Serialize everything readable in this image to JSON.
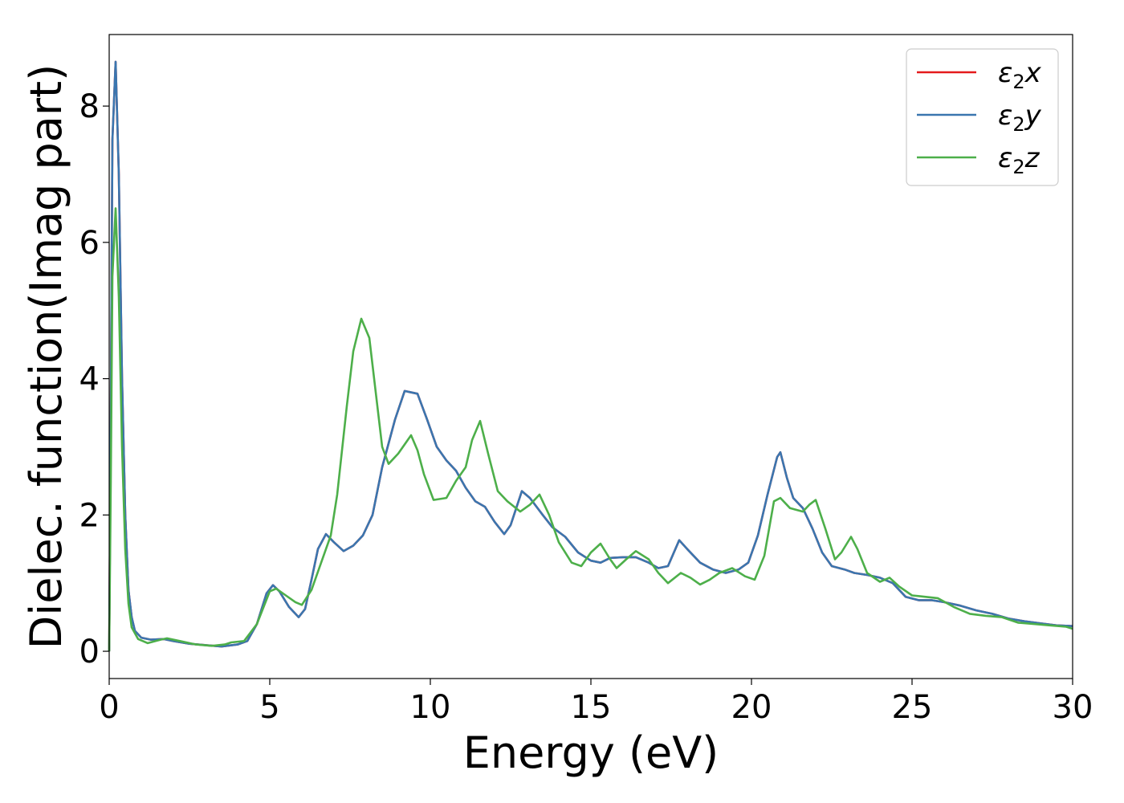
{
  "chart_data": {
    "type": "line",
    "xlabel": "Energy (eV)",
    "ylabel": "Dielec. function(Imag part)",
    "xlim": [
      0,
      30
    ],
    "ylim": [
      -0.4,
      9.05
    ],
    "x_ticks": [
      0,
      5,
      10,
      15,
      20,
      25,
      30
    ],
    "y_ticks": [
      0,
      2,
      4,
      6,
      8
    ],
    "legend_position": "top-right",
    "grid": false,
    "series": [
      {
        "name": "ε₂x",
        "legend_base": "ε",
        "legend_sub": "2",
        "legend_tail": "x",
        "color": "#e41a1c",
        "points": [
          [
            0,
            0
          ],
          [
            0.05,
            3.5
          ],
          [
            0.1,
            7.5
          ],
          [
            0.2,
            8.65
          ],
          [
            0.3,
            7.0
          ],
          [
            0.4,
            4.0
          ],
          [
            0.5,
            2.0
          ],
          [
            0.6,
            0.9
          ],
          [
            0.7,
            0.5
          ],
          [
            0.8,
            0.3
          ],
          [
            1.0,
            0.2
          ],
          [
            1.3,
            0.17
          ],
          [
            1.7,
            0.18
          ],
          [
            2.0,
            0.15
          ],
          [
            2.5,
            0.11
          ],
          [
            3.0,
            0.09
          ],
          [
            3.5,
            0.07
          ],
          [
            4.0,
            0.1
          ],
          [
            4.3,
            0.15
          ],
          [
            4.6,
            0.4
          ],
          [
            4.9,
            0.85
          ],
          [
            5.1,
            0.97
          ],
          [
            5.3,
            0.88
          ],
          [
            5.6,
            0.65
          ],
          [
            5.9,
            0.5
          ],
          [
            6.1,
            0.62
          ],
          [
            6.3,
            1.05
          ],
          [
            6.5,
            1.5
          ],
          [
            6.75,
            1.72
          ],
          [
            7.0,
            1.6
          ],
          [
            7.3,
            1.47
          ],
          [
            7.6,
            1.55
          ],
          [
            7.9,
            1.7
          ],
          [
            8.2,
            2.0
          ],
          [
            8.5,
            2.7
          ],
          [
            8.9,
            3.4
          ],
          [
            9.2,
            3.82
          ],
          [
            9.6,
            3.78
          ],
          [
            9.9,
            3.4
          ],
          [
            10.2,
            3.0
          ],
          [
            10.5,
            2.8
          ],
          [
            10.8,
            2.65
          ],
          [
            11.1,
            2.4
          ],
          [
            11.4,
            2.2
          ],
          [
            11.7,
            2.12
          ],
          [
            12.0,
            1.9
          ],
          [
            12.3,
            1.72
          ],
          [
            12.5,
            1.85
          ],
          [
            12.85,
            2.35
          ],
          [
            13.1,
            2.25
          ],
          [
            13.5,
            2.0
          ],
          [
            13.8,
            1.82
          ],
          [
            14.2,
            1.68
          ],
          [
            14.6,
            1.45
          ],
          [
            15.0,
            1.33
          ],
          [
            15.3,
            1.3
          ],
          [
            15.6,
            1.37
          ],
          [
            16.0,
            1.38
          ],
          [
            16.4,
            1.38
          ],
          [
            16.8,
            1.3
          ],
          [
            17.1,
            1.22
          ],
          [
            17.4,
            1.25
          ],
          [
            17.75,
            1.63
          ],
          [
            18.0,
            1.5
          ],
          [
            18.4,
            1.3
          ],
          [
            18.8,
            1.2
          ],
          [
            19.2,
            1.15
          ],
          [
            19.6,
            1.2
          ],
          [
            19.9,
            1.3
          ],
          [
            20.2,
            1.7
          ],
          [
            20.5,
            2.3
          ],
          [
            20.8,
            2.85
          ],
          [
            20.9,
            2.92
          ],
          [
            21.1,
            2.55
          ],
          [
            21.3,
            2.25
          ],
          [
            21.6,
            2.1
          ],
          [
            21.9,
            1.8
          ],
          [
            22.2,
            1.45
          ],
          [
            22.5,
            1.25
          ],
          [
            22.9,
            1.2
          ],
          [
            23.2,
            1.15
          ],
          [
            23.6,
            1.12
          ],
          [
            24.0,
            1.08
          ],
          [
            24.4,
            1.0
          ],
          [
            24.8,
            0.8
          ],
          [
            25.2,
            0.75
          ],
          [
            25.6,
            0.75
          ],
          [
            26.0,
            0.72
          ],
          [
            26.5,
            0.67
          ],
          [
            27.0,
            0.6
          ],
          [
            27.5,
            0.55
          ],
          [
            28.0,
            0.48
          ],
          [
            28.5,
            0.44
          ],
          [
            29.0,
            0.41
          ],
          [
            29.5,
            0.38
          ],
          [
            30.0,
            0.37
          ]
        ]
      },
      {
        "name": "ε₂y",
        "legend_base": "ε",
        "legend_sub": "2",
        "legend_tail": "y",
        "color": "#3a76af",
        "points": [
          [
            0,
            0
          ],
          [
            0.05,
            3.5
          ],
          [
            0.1,
            7.5
          ],
          [
            0.2,
            8.65
          ],
          [
            0.3,
            7.0
          ],
          [
            0.4,
            4.0
          ],
          [
            0.5,
            2.0
          ],
          [
            0.6,
            0.9
          ],
          [
            0.7,
            0.5
          ],
          [
            0.8,
            0.3
          ],
          [
            1.0,
            0.2
          ],
          [
            1.3,
            0.17
          ],
          [
            1.7,
            0.18
          ],
          [
            2.0,
            0.15
          ],
          [
            2.5,
            0.11
          ],
          [
            3.0,
            0.09
          ],
          [
            3.5,
            0.07
          ],
          [
            4.0,
            0.1
          ],
          [
            4.3,
            0.15
          ],
          [
            4.6,
            0.4
          ],
          [
            4.9,
            0.85
          ],
          [
            5.1,
            0.97
          ],
          [
            5.3,
            0.88
          ],
          [
            5.6,
            0.65
          ],
          [
            5.9,
            0.5
          ],
          [
            6.1,
            0.62
          ],
          [
            6.3,
            1.05
          ],
          [
            6.5,
            1.5
          ],
          [
            6.75,
            1.72
          ],
          [
            7.0,
            1.6
          ],
          [
            7.3,
            1.47
          ],
          [
            7.6,
            1.55
          ],
          [
            7.9,
            1.7
          ],
          [
            8.2,
            2.0
          ],
          [
            8.5,
            2.7
          ],
          [
            8.9,
            3.4
          ],
          [
            9.2,
            3.82
          ],
          [
            9.6,
            3.78
          ],
          [
            9.9,
            3.4
          ],
          [
            10.2,
            3.0
          ],
          [
            10.5,
            2.8
          ],
          [
            10.8,
            2.65
          ],
          [
            11.1,
            2.4
          ],
          [
            11.4,
            2.2
          ],
          [
            11.7,
            2.12
          ],
          [
            12.0,
            1.9
          ],
          [
            12.3,
            1.72
          ],
          [
            12.5,
            1.85
          ],
          [
            12.85,
            2.35
          ],
          [
            13.1,
            2.25
          ],
          [
            13.5,
            2.0
          ],
          [
            13.8,
            1.82
          ],
          [
            14.2,
            1.68
          ],
          [
            14.6,
            1.45
          ],
          [
            15.0,
            1.33
          ],
          [
            15.3,
            1.3
          ],
          [
            15.6,
            1.37
          ],
          [
            16.0,
            1.38
          ],
          [
            16.4,
            1.38
          ],
          [
            16.8,
            1.3
          ],
          [
            17.1,
            1.22
          ],
          [
            17.4,
            1.25
          ],
          [
            17.75,
            1.63
          ],
          [
            18.0,
            1.5
          ],
          [
            18.4,
            1.3
          ],
          [
            18.8,
            1.2
          ],
          [
            19.2,
            1.15
          ],
          [
            19.6,
            1.2
          ],
          [
            19.9,
            1.3
          ],
          [
            20.2,
            1.7
          ],
          [
            20.5,
            2.3
          ],
          [
            20.8,
            2.85
          ],
          [
            20.9,
            2.92
          ],
          [
            21.1,
            2.55
          ],
          [
            21.3,
            2.25
          ],
          [
            21.6,
            2.1
          ],
          [
            21.9,
            1.8
          ],
          [
            22.2,
            1.45
          ],
          [
            22.5,
            1.25
          ],
          [
            22.9,
            1.2
          ],
          [
            23.2,
            1.15
          ],
          [
            23.6,
            1.12
          ],
          [
            24.0,
            1.08
          ],
          [
            24.4,
            1.0
          ],
          [
            24.8,
            0.8
          ],
          [
            25.2,
            0.75
          ],
          [
            25.6,
            0.75
          ],
          [
            26.0,
            0.72
          ],
          [
            26.5,
            0.67
          ],
          [
            27.0,
            0.6
          ],
          [
            27.5,
            0.55
          ],
          [
            28.0,
            0.48
          ],
          [
            28.5,
            0.44
          ],
          [
            29.0,
            0.41
          ],
          [
            29.5,
            0.38
          ],
          [
            30.0,
            0.37
          ]
        ]
      },
      {
        "name": "ε₂z",
        "legend_base": "ε",
        "legend_sub": "2",
        "legend_tail": "z",
        "color": "#4daf4a",
        "points": [
          [
            0,
            0
          ],
          [
            0.05,
            2.5
          ],
          [
            0.1,
            5.5
          ],
          [
            0.2,
            6.5
          ],
          [
            0.3,
            5.2
          ],
          [
            0.4,
            3.0
          ],
          [
            0.5,
            1.5
          ],
          [
            0.6,
            0.7
          ],
          [
            0.7,
            0.35
          ],
          [
            0.9,
            0.18
          ],
          [
            1.2,
            0.12
          ],
          [
            1.6,
            0.17
          ],
          [
            1.8,
            0.19
          ],
          [
            2.2,
            0.15
          ],
          [
            2.7,
            0.1
          ],
          [
            3.2,
            0.08
          ],
          [
            3.6,
            0.1
          ],
          [
            3.8,
            0.13
          ],
          [
            4.2,
            0.15
          ],
          [
            4.6,
            0.4
          ],
          [
            5.0,
            0.88
          ],
          [
            5.2,
            0.92
          ],
          [
            5.5,
            0.82
          ],
          [
            5.8,
            0.72
          ],
          [
            6.0,
            0.68
          ],
          [
            6.3,
            0.9
          ],
          [
            6.6,
            1.3
          ],
          [
            6.9,
            1.7
          ],
          [
            7.1,
            2.3
          ],
          [
            7.4,
            3.6
          ],
          [
            7.6,
            4.4
          ],
          [
            7.85,
            4.88
          ],
          [
            8.1,
            4.6
          ],
          [
            8.3,
            3.8
          ],
          [
            8.5,
            3.0
          ],
          [
            8.7,
            2.75
          ],
          [
            9.0,
            2.9
          ],
          [
            9.4,
            3.17
          ],
          [
            9.6,
            2.95
          ],
          [
            9.8,
            2.6
          ],
          [
            10.1,
            2.22
          ],
          [
            10.5,
            2.25
          ],
          [
            10.8,
            2.5
          ],
          [
            11.1,
            2.7
          ],
          [
            11.3,
            3.1
          ],
          [
            11.55,
            3.38
          ],
          [
            11.8,
            2.9
          ],
          [
            12.1,
            2.35
          ],
          [
            12.4,
            2.2
          ],
          [
            12.8,
            2.05
          ],
          [
            13.1,
            2.15
          ],
          [
            13.4,
            2.3
          ],
          [
            13.7,
            2.0
          ],
          [
            14.0,
            1.6
          ],
          [
            14.4,
            1.3
          ],
          [
            14.7,
            1.25
          ],
          [
            15.0,
            1.45
          ],
          [
            15.3,
            1.58
          ],
          [
            15.6,
            1.35
          ],
          [
            15.8,
            1.22
          ],
          [
            16.1,
            1.35
          ],
          [
            16.4,
            1.47
          ],
          [
            16.8,
            1.35
          ],
          [
            17.1,
            1.15
          ],
          [
            17.4,
            1.0
          ],
          [
            17.8,
            1.15
          ],
          [
            18.1,
            1.08
          ],
          [
            18.4,
            0.98
          ],
          [
            18.7,
            1.05
          ],
          [
            19.0,
            1.15
          ],
          [
            19.4,
            1.22
          ],
          [
            19.8,
            1.1
          ],
          [
            20.1,
            1.05
          ],
          [
            20.4,
            1.4
          ],
          [
            20.7,
            2.2
          ],
          [
            20.9,
            2.25
          ],
          [
            21.2,
            2.1
          ],
          [
            21.6,
            2.05
          ],
          [
            21.8,
            2.15
          ],
          [
            22.0,
            2.22
          ],
          [
            22.3,
            1.8
          ],
          [
            22.6,
            1.35
          ],
          [
            22.8,
            1.45
          ],
          [
            23.1,
            1.68
          ],
          [
            23.3,
            1.5
          ],
          [
            23.6,
            1.15
          ],
          [
            24.0,
            1.02
          ],
          [
            24.3,
            1.08
          ],
          [
            24.6,
            0.95
          ],
          [
            25.0,
            0.82
          ],
          [
            25.4,
            0.8
          ],
          [
            25.8,
            0.78
          ],
          [
            26.3,
            0.65
          ],
          [
            26.8,
            0.55
          ],
          [
            27.3,
            0.52
          ],
          [
            27.8,
            0.5
          ],
          [
            28.3,
            0.42
          ],
          [
            28.8,
            0.4
          ],
          [
            29.3,
            0.38
          ],
          [
            29.8,
            0.36
          ],
          [
            30.0,
            0.33
          ]
        ]
      }
    ]
  }
}
